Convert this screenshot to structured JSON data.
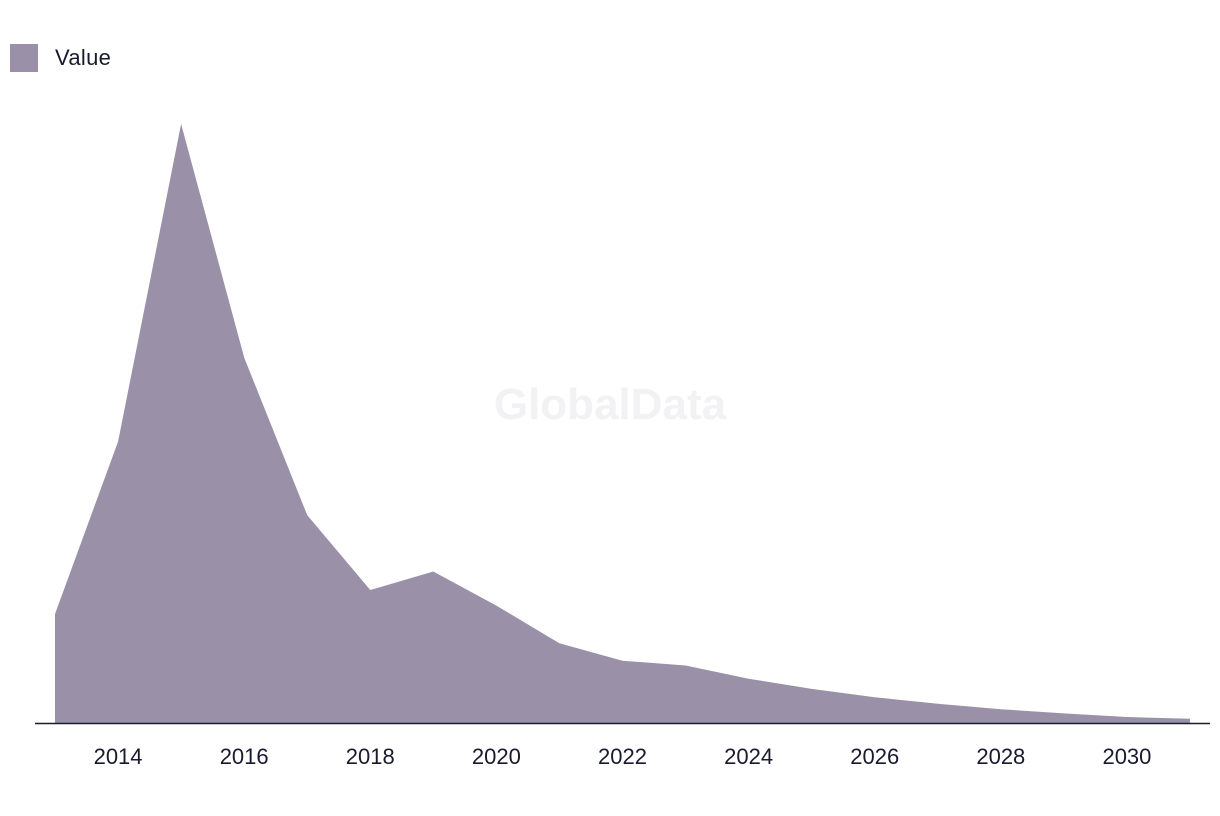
{
  "watermark": "GlobalData",
  "legend": {
    "label": "Value"
  },
  "colors": {
    "area": "#9a91a8",
    "axis": "#1a1a2e",
    "text": "#1a1a2e"
  },
  "chart_data": {
    "type": "area",
    "title": "",
    "xlabel": "",
    "ylabel": "",
    "legend_position": "top-left",
    "grid": false,
    "x": [
      2013,
      2014,
      2015,
      2016,
      2017,
      2018,
      2019,
      2020,
      2021,
      2022,
      2023,
      2024,
      2025,
      2026,
      2027,
      2028,
      2029,
      2030,
      2031
    ],
    "series": [
      {
        "name": "Value",
        "values": [
          18.2,
          47.0,
          100.0,
          61.0,
          34.7,
          22.2,
          25.3,
          19.6,
          13.3,
          10.4,
          9.6,
          7.4,
          5.7,
          4.3,
          3.2,
          2.3,
          1.6,
          1.0,
          0.7
        ]
      }
    ],
    "ticks": [
      "2014",
      "2016",
      "2018",
      "2020",
      "2022",
      "2024",
      "2026",
      "2028",
      "2030"
    ],
    "ylim": [
      0,
      100
    ],
    "xlim": [
      2013,
      2031
    ]
  }
}
